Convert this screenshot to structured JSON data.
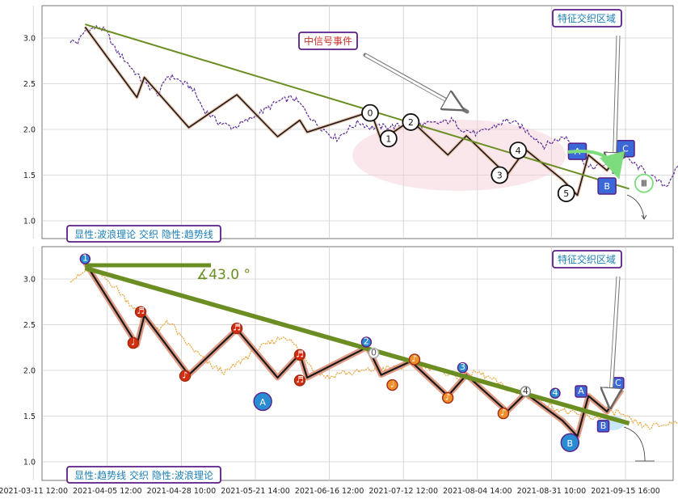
{
  "chart_data": [
    {
      "type": "line",
      "ylim": [
        0.85,
        3.35
      ],
      "xlim": [
        0,
        190
      ],
      "yticks": [
        "1.0",
        "1.5",
        "2.0",
        "2.5",
        "3.0"
      ],
      "ytick_values": [
        1.0,
        1.5,
        2.0,
        2.5,
        3.0
      ],
      "annotations": {
        "event": "中信号事件",
        "zone": "特征交织区域",
        "mode": "显性:波浪理论 交织 隐性:趋势线"
      },
      "price_anchors": [
        [
          0,
          2.97
        ],
        [
          2,
          2.95
        ],
        [
          4,
          3.08
        ],
        [
          6,
          3.1
        ],
        [
          8,
          3.12
        ],
        [
          10,
          3.05
        ],
        [
          12,
          2.88
        ],
        [
          15,
          2.75
        ],
        [
          18,
          2.6
        ],
        [
          20,
          2.5
        ],
        [
          22,
          2.45
        ],
        [
          24,
          2.38
        ],
        [
          26,
          2.58
        ],
        [
          28,
          2.57
        ],
        [
          30,
          2.52
        ],
        [
          33,
          2.45
        ],
        [
          36,
          2.22
        ],
        [
          40,
          2.08
        ],
        [
          44,
          2.02
        ],
        [
          48,
          2.1
        ],
        [
          52,
          2.2
        ],
        [
          56,
          2.3
        ],
        [
          60,
          2.35
        ],
        [
          62,
          2.28
        ],
        [
          66,
          2.08
        ],
        [
          70,
          1.95
        ],
        [
          72,
          1.9
        ],
        [
          75,
          2.0
        ],
        [
          78,
          2.08
        ],
        [
          81,
          2.02
        ],
        [
          85,
          2.03
        ],
        [
          90,
          2.04
        ],
        [
          95,
          2.05
        ],
        [
          100,
          2.07
        ],
        [
          103,
          2.1
        ],
        [
          106,
          2.0
        ],
        [
          110,
          1.95
        ],
        [
          114,
          2.02
        ],
        [
          118,
          2.1
        ],
        [
          121,
          2.05
        ],
        [
          125,
          1.93
        ],
        [
          128,
          1.82
        ],
        [
          131,
          1.88
        ],
        [
          134,
          1.92
        ],
        [
          137,
          1.75
        ],
        [
          140,
          1.58
        ],
        [
          143,
          1.6
        ],
        [
          146,
          1.65
        ],
        [
          149,
          1.72
        ],
        [
          152,
          1.63
        ],
        [
          155,
          1.55
        ],
        [
          158,
          1.45
        ],
        [
          161,
          1.38
        ],
        [
          163,
          1.52
        ],
        [
          165,
          1.62
        ],
        [
          168,
          1.55
        ],
        [
          170,
          1.45
        ],
        [
          173,
          1.5
        ],
        [
          175,
          1.48
        ]
      ],
      "wave_path": [
        [
          4,
          3.12
        ],
        [
          18,
          2.35
        ],
        [
          20,
          2.57
        ],
        [
          32,
          2.02
        ],
        [
          45,
          2.38
        ],
        [
          56,
          1.92
        ],
        [
          62,
          2.1
        ],
        [
          64,
          1.97
        ],
        [
          80,
          2.18
        ],
        [
          81,
          2.22
        ],
        [
          84,
          1.88
        ],
        [
          92,
          2.1
        ],
        [
          102,
          1.72
        ],
        [
          107,
          1.93
        ],
        [
          118,
          1.5
        ],
        [
          123,
          1.78
        ],
        [
          133,
          1.45
        ],
        [
          137,
          1.28
        ],
        [
          140,
          1.72
        ],
        [
          145,
          1.55
        ],
        [
          149,
          1.78
        ]
      ],
      "trendline": [
        [
          4,
          3.15
        ],
        [
          151,
          1.35
        ]
      ],
      "wave_labels": [
        {
          "label": "0",
          "x": 81,
          "y": 2.18
        },
        {
          "label": "1",
          "x": 86,
          "y": 1.9
        },
        {
          "label": "2",
          "x": 92,
          "y": 2.08
        },
        {
          "label": "3",
          "x": 116,
          "y": 1.5
        },
        {
          "label": "4",
          "x": 121,
          "y": 1.77
        },
        {
          "label": "5",
          "x": 134,
          "y": 1.3
        },
        {
          "label": "A",
          "x": 137,
          "y": 1.76
        },
        {
          "label": "B",
          "x": 145,
          "y": 1.38
        },
        {
          "label": "C",
          "x": 150,
          "y": 1.79
        },
        {
          "label": "Ⅲ",
          "x": 155,
          "y": 1.41
        }
      ]
    },
    {
      "type": "line",
      "ylim": [
        0.85,
        3.35
      ],
      "xlim": [
        0,
        190
      ],
      "yticks": [
        "1.0",
        "1.5",
        "2.0",
        "2.5",
        "3.0"
      ],
      "ytick_values": [
        1.0,
        1.5,
        2.0,
        2.5,
        3.0
      ],
      "xticks": [
        "2021-03-11 12:00",
        "2021-04-05 12:00",
        "2021-04-28 10:00",
        "2021-05-21 14:00",
        "2021-06-16 12:00",
        "2021-07-12 12:00",
        "2021-08-04 14:00",
        "2021-08-31 10:00",
        "2021-09-15 16:00"
      ],
      "xtick_values": [
        -10,
        10,
        30,
        50,
        70,
        90,
        110,
        130,
        150
      ],
      "annotations": {
        "angle": "∡43.0 °",
        "zone": "特征交织区域",
        "mode": "显性:趋势线 交织 隐性:波浪理论"
      },
      "price_anchors": [
        [
          0,
          3.0
        ],
        [
          2,
          3.02
        ],
        [
          4,
          3.08
        ],
        [
          6,
          3.1
        ],
        [
          8,
          3.05
        ],
        [
          12,
          2.92
        ],
        [
          15,
          2.78
        ],
        [
          18,
          2.65
        ],
        [
          20,
          2.55
        ],
        [
          22,
          2.5
        ],
        [
          24,
          2.42
        ],
        [
          26,
          2.55
        ],
        [
          28,
          2.48
        ],
        [
          30,
          2.35
        ],
        [
          34,
          2.2
        ],
        [
          38,
          2.05
        ],
        [
          42,
          1.98
        ],
        [
          46,
          2.1
        ],
        [
          50,
          2.22
        ],
        [
          54,
          2.3
        ],
        [
          58,
          2.38
        ],
        [
          62,
          2.22
        ],
        [
          66,
          2.0
        ],
        [
          70,
          1.92
        ],
        [
          73,
          1.98
        ],
        [
          76,
          1.97
        ],
        [
          80,
          2.0
        ],
        [
          85,
          2.02
        ],
        [
          90,
          2.04
        ],
        [
          95,
          2.06
        ],
        [
          100,
          2.0
        ],
        [
          105,
          1.92
        ],
        [
          110,
          1.98
        ],
        [
          114,
          1.9
        ],
        [
          118,
          1.8
        ],
        [
          122,
          1.72
        ],
        [
          126,
          1.7
        ],
        [
          130,
          1.6
        ],
        [
          134,
          1.55
        ],
        [
          138,
          1.5
        ],
        [
          142,
          1.48
        ],
        [
          145,
          1.52
        ],
        [
          148,
          1.55
        ],
        [
          150,
          1.48
        ],
        [
          153,
          1.42
        ],
        [
          156,
          1.38
        ],
        [
          160,
          1.4
        ],
        [
          163,
          1.43
        ],
        [
          166,
          1.45
        ],
        [
          170,
          1.42
        ],
        [
          173,
          1.4
        ]
      ],
      "wave_path": [
        [
          4,
          3.18
        ],
        [
          18,
          2.28
        ],
        [
          20,
          2.6
        ],
        [
          32,
          1.95
        ],
        [
          45,
          2.45
        ],
        [
          56,
          1.92
        ],
        [
          62,
          2.18
        ],
        [
          64,
          1.92
        ],
        [
          80,
          2.25
        ],
        [
          81,
          2.2
        ],
        [
          84,
          1.95
        ],
        [
          92,
          2.1
        ],
        [
          102,
          1.72
        ],
        [
          107,
          1.95
        ],
        [
          118,
          1.55
        ],
        [
          123,
          1.75
        ],
        [
          133,
          1.45
        ],
        [
          137,
          1.28
        ],
        [
          140,
          1.72
        ],
        [
          145,
          1.55
        ],
        [
          149,
          1.79
        ]
      ],
      "trendline": [
        [
          4,
          3.12
        ],
        [
          151,
          1.42
        ]
      ],
      "horizontal_line": [
        [
          4,
          3.15
        ],
        [
          38,
          3.15
        ]
      ],
      "wave_labels": [
        {
          "label": "1",
          "x": 4,
          "y": 3.22
        },
        {
          "label": "♩",
          "x": 17,
          "y": 2.3
        },
        {
          "label": "♬",
          "x": 19,
          "y": 2.64
        },
        {
          "label": "♪",
          "x": 31,
          "y": 1.94
        },
        {
          "label": "♬",
          "x": 45,
          "y": 2.46
        },
        {
          "label": "A",
          "x": 52,
          "y": 1.66
        },
        {
          "label": "♬",
          "x": 62,
          "y": 2.17
        },
        {
          "label": "♬",
          "x": 62,
          "y": 1.89
        },
        {
          "label": "2",
          "x": 80,
          "y": 2.31
        },
        {
          "label": "0",
          "x": 82,
          "y": 2.19
        },
        {
          "label": "♩",
          "x": 87,
          "y": 1.84
        },
        {
          "label": "♪",
          "x": 93,
          "y": 2.12
        },
        {
          "label": "♪",
          "x": 102,
          "y": 1.7
        },
        {
          "label": "3",
          "x": 106,
          "y": 2.03
        },
        {
          "label": "♪",
          "x": 117,
          "y": 1.53
        },
        {
          "label": "4",
          "x": 123,
          "y": 1.77
        },
        {
          "label": "4",
          "x": 131,
          "y": 1.75
        },
        {
          "label": "B",
          "x": 135,
          "y": 1.21
        },
        {
          "label": "A",
          "x": 138,
          "y": 1.77
        },
        {
          "label": "B",
          "x": 144,
          "y": 1.39
        },
        {
          "label": "C",
          "x": 148,
          "y": 1.86
        }
      ]
    }
  ]
}
